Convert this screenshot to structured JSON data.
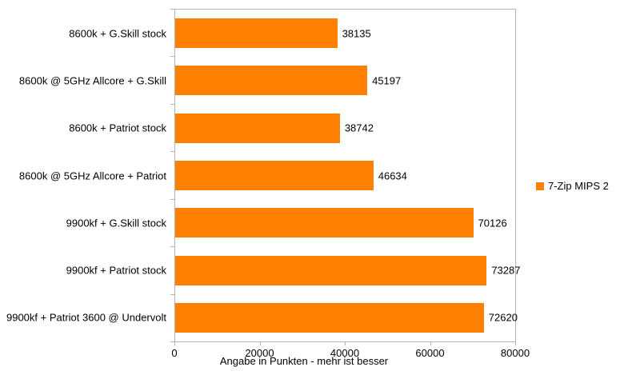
{
  "chart_data": {
    "type": "bar",
    "orientation": "horizontal",
    "title": "",
    "categories": [
      "8600k + G.Skill stock",
      "8600k @ 5GHz Allcore + G.Skill",
      "8600k + Patriot stock",
      "8600k @ 5GHz Allcore + Patriot",
      "9900kf + G.Skill stock",
      "9900kf + Patriot stock",
      "9900kf + Patriot 3600 @ Undervolt"
    ],
    "series": [
      {
        "name": "7-Zip MIPS 2",
        "values": [
          38135,
          45197,
          38742,
          46634,
          70126,
          73287,
          72620
        ]
      }
    ],
    "value_labels": [
      "38135",
      "45197",
      "38742",
      "46634",
      "70126",
      "73287",
      "72620"
    ],
    "xlabel": "Angabe in Punkten - mehr ist besser",
    "ylabel": "",
    "xlim": [
      0,
      80000
    ],
    "x_ticks": [
      0,
      20000,
      40000,
      60000,
      80000
    ],
    "x_tick_labels": [
      "0",
      "20000",
      "40000",
      "60000",
      "80000"
    ],
    "grid": false,
    "legend_position": "right",
    "colors": {
      "bar": "#ff8000",
      "axis": "#b3b3b3",
      "text": "#000000",
      "background": "#ffffff"
    }
  }
}
